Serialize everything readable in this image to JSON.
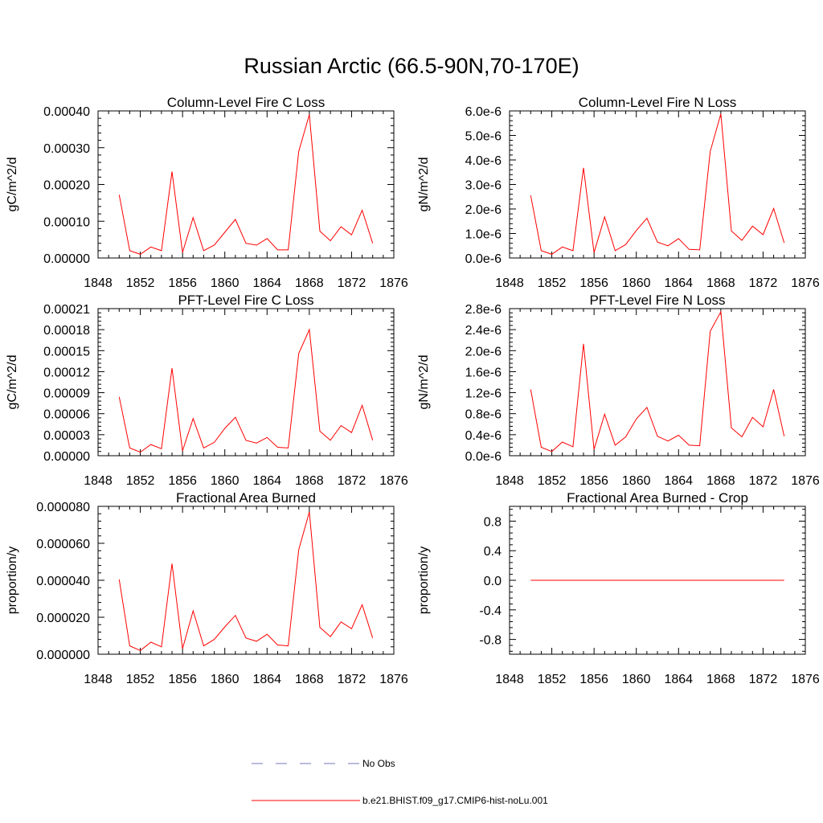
{
  "figure_title": "Russian Arctic (66.5-90N,70-170E)",
  "chart_data": [
    {
      "type": "line",
      "title": "Column-Level Fire C Loss",
      "ylabel": "gC/m^2/d",
      "xlim": [
        1848,
        1876
      ],
      "ylim": [
        0,
        0.0004
      ],
      "xticks": [
        1848,
        1852,
        1856,
        1860,
        1864,
        1868,
        1872,
        1876
      ],
      "xtick_labels": [
        "1848",
        "1852",
        "1856",
        "1860",
        "1864",
        "1868",
        "1872",
        "1876"
      ],
      "yticks": [
        0,
        0.0001,
        0.0002,
        0.0003,
        0.0004
      ],
      "ytick_labels": [
        "0.00000",
        "0.00010",
        "0.00020",
        "0.00030",
        "0.00040"
      ],
      "series": [
        {
          "color": "#ff0000",
          "x": [
            1850,
            1851,
            1852,
            1853,
            1854,
            1855,
            1856,
            1857,
            1858,
            1859,
            1860,
            1861,
            1862,
            1863,
            1864,
            1865,
            1866,
            1867,
            1868,
            1869,
            1870,
            1871,
            1872,
            1873,
            1874
          ],
          "y": [
            0.000172,
            2e-05,
            1e-05,
            3e-05,
            2e-05,
            0.000235,
            1.5e-05,
            0.00011,
            2e-05,
            3.5e-05,
            7e-05,
            0.000105,
            4e-05,
            3.5e-05,
            5.3e-05,
            2.2e-05,
            2.2e-05,
            0.00029,
            0.00039,
            7.3e-05,
            4.7e-05,
            8.5e-05,
            6.3e-05,
            0.00013,
            4e-05
          ]
        }
      ]
    },
    {
      "type": "line",
      "title": "Column-Level Fire N Loss",
      "ylabel": "gN/m^2/d",
      "xlim": [
        1848,
        1876
      ],
      "ylim": [
        0,
        6e-06
      ],
      "xticks": [
        1848,
        1852,
        1856,
        1860,
        1864,
        1868,
        1872,
        1876
      ],
      "xtick_labels": [
        "1848",
        "1852",
        "1856",
        "1860",
        "1864",
        "1868",
        "1872",
        "1876"
      ],
      "yticks": [
        0,
        1e-06,
        2e-06,
        3e-06,
        4e-06,
        5e-06,
        6e-06
      ],
      "ytick_labels": [
        "0.0e-6",
        "1.0e-6",
        "2.0e-6",
        "3.0e-6",
        "4.0e-6",
        "5.0e-6",
        "6.0e-6"
      ],
      "series": [
        {
          "color": "#ff0000",
          "x": [
            1850,
            1851,
            1852,
            1853,
            1854,
            1855,
            1856,
            1857,
            1858,
            1859,
            1860,
            1861,
            1862,
            1863,
            1864,
            1865,
            1866,
            1867,
            1868,
            1869,
            1870,
            1871,
            1872,
            1873,
            1874
          ],
          "y": [
            2.55e-06,
            3e-07,
            1.5e-07,
            4.5e-07,
            3e-07,
            3.68e-06,
            2.2e-07,
            1.68e-06,
            3e-07,
            5.5e-07,
            1.12e-06,
            1.62e-06,
            6.5e-07,
            5e-07,
            7.9e-07,
            3.5e-07,
            3.3e-07,
            4.35e-06,
            5.88e-06,
            1.1e-06,
            7.2e-07,
            1.3e-06,
            9.5e-07,
            2.02e-06,
            6.2e-07
          ]
        }
      ]
    },
    {
      "type": "line",
      "title": "PFT-Level Fire C Loss",
      "ylabel": "gC/m^2/d",
      "xlim": [
        1848,
        1876
      ],
      "ylim": [
        0,
        0.00021
      ],
      "xticks": [
        1848,
        1852,
        1856,
        1860,
        1864,
        1868,
        1872,
        1876
      ],
      "xtick_labels": [
        "1848",
        "1852",
        "1856",
        "1860",
        "1864",
        "1868",
        "1872",
        "1876"
      ],
      "yticks": [
        0,
        3e-05,
        6e-05,
        9e-05,
        0.00012,
        0.00015,
        0.00018,
        0.00021
      ],
      "ytick_labels": [
        "0.00000",
        "0.00003",
        "0.00006",
        "0.00009",
        "0.00012",
        "0.00015",
        "0.00018",
        "0.00021"
      ],
      "series": [
        {
          "color": "#ff0000",
          "x": [
            1850,
            1851,
            1852,
            1853,
            1854,
            1855,
            1856,
            1857,
            1858,
            1859,
            1860,
            1861,
            1862,
            1863,
            1864,
            1865,
            1866,
            1867,
            1868,
            1869,
            1870,
            1871,
            1872,
            1873,
            1874
          ],
          "y": [
            8.4e-05,
            1.1e-05,
            5e-06,
            1.6e-05,
            1e-05,
            0.000125,
            7e-06,
            5.3e-05,
            1.1e-05,
            1.9e-05,
            3.9e-05,
            5.5e-05,
            2.2e-05,
            1.8e-05,
            2.6e-05,
            1.2e-05,
            1.1e-05,
            0.000146,
            0.00018,
            3.5e-05,
            2.2e-05,
            4.3e-05,
            3.3e-05,
            7.2e-05,
            2.2e-05
          ]
        }
      ]
    },
    {
      "type": "line",
      "title": "PFT-Level Fire N Loss",
      "ylabel": "gN/m^2/d",
      "xlim": [
        1848,
        1876
      ],
      "ylim": [
        0,
        2.8e-06
      ],
      "xticks": [
        1848,
        1852,
        1856,
        1860,
        1864,
        1868,
        1872,
        1876
      ],
      "xtick_labels": [
        "1848",
        "1852",
        "1856",
        "1860",
        "1864",
        "1868",
        "1872",
        "1876"
      ],
      "yticks": [
        0,
        4e-07,
        8e-07,
        1.2e-06,
        1.6e-06,
        2e-06,
        2.4e-06,
        2.8e-06
      ],
      "ytick_labels": [
        "0.0e-6",
        "0.4e-6",
        "0.8e-6",
        "1.2e-6",
        "1.6e-6",
        "2.0e-6",
        "2.4e-6",
        "2.8e-6"
      ],
      "series": [
        {
          "color": "#ff0000",
          "x": [
            1850,
            1851,
            1852,
            1853,
            1854,
            1855,
            1856,
            1857,
            1858,
            1859,
            1860,
            1861,
            1862,
            1863,
            1864,
            1865,
            1866,
            1867,
            1868,
            1869,
            1870,
            1871,
            1872,
            1873,
            1874
          ],
          "y": [
            1.26e-06,
            1.6e-07,
            8e-08,
            2.6e-07,
            1.7e-07,
            2.13e-06,
            1.2e-07,
            7.9e-07,
            2e-07,
            3.6e-07,
            7e-07,
            9.2e-07,
            3.7e-07,
            2.8e-07,
            3.9e-07,
            2e-07,
            1.9e-07,
            2.37e-06,
            2.74e-06,
            5.3e-07,
            3.6e-07,
            7.3e-07,
            5.5e-07,
            1.26e-06,
            3.7e-07
          ]
        }
      ]
    },
    {
      "type": "line",
      "title": "Fractional Area Burned",
      "ylabel": "proportion/y",
      "xlim": [
        1848,
        1876
      ],
      "ylim": [
        0,
        8e-05
      ],
      "xticks": [
        1848,
        1852,
        1856,
        1860,
        1864,
        1868,
        1872,
        1876
      ],
      "xtick_labels": [
        "1848",
        "1852",
        "1856",
        "1860",
        "1864",
        "1868",
        "1872",
        "1876"
      ],
      "yticks": [
        0,
        2e-05,
        4e-05,
        6e-05,
        8e-05
      ],
      "ytick_labels": [
        "0.000000",
        "0.000020",
        "0.000040",
        "0.000060",
        "0.000080"
      ],
      "series": [
        {
          "color": "#ff0000",
          "x": [
            1850,
            1851,
            1852,
            1853,
            1854,
            1855,
            1856,
            1857,
            1858,
            1859,
            1860,
            1861,
            1862,
            1863,
            1864,
            1865,
            1866,
            1867,
            1868,
            1869,
            1870,
            1871,
            1872,
            1873,
            1874
          ],
          "y": [
            4.05e-05,
            4.5e-06,
            2e-06,
            6.5e-06,
            4e-06,
            4.9e-05,
            3e-06,
            2.35e-05,
            4.5e-06,
            8e-06,
            1.48e-05,
            2.1e-05,
            8.8e-06,
            7e-06,
            1.08e-05,
            5e-06,
            4.5e-06,
            5.65e-05,
            7.7e-05,
            1.45e-05,
            9.5e-06,
            1.75e-05,
            1.38e-05,
            2.68e-05,
            8.8e-06
          ]
        }
      ]
    },
    {
      "type": "line",
      "title": "Fractional Area Burned - Crop",
      "ylabel": "proportion/y",
      "xlim": [
        1848,
        1876
      ],
      "ylim": [
        -1.0,
        1.0
      ],
      "xticks": [
        1848,
        1852,
        1856,
        1860,
        1864,
        1868,
        1872,
        1876
      ],
      "xtick_labels": [
        "1848",
        "1852",
        "1856",
        "1860",
        "1864",
        "1868",
        "1872",
        "1876"
      ],
      "yticks": [
        -0.8,
        -0.4,
        0.0,
        0.4,
        0.8
      ],
      "ytick_labels": [
        "-0.8",
        "-0.4",
        "0.0",
        "0.4",
        "0.8"
      ],
      "series": [
        {
          "color": "#ff0000",
          "x": [
            1850,
            1874
          ],
          "y": [
            0,
            0
          ]
        }
      ]
    }
  ],
  "legend": [
    {
      "label": "No Obs",
      "color": "#7777bb",
      "style": "dashed"
    },
    {
      "label": "b.e21.BHIST.f09_g17.CMIP6-hist-noLu.001",
      "color": "#ff0000",
      "style": "solid"
    }
  ]
}
